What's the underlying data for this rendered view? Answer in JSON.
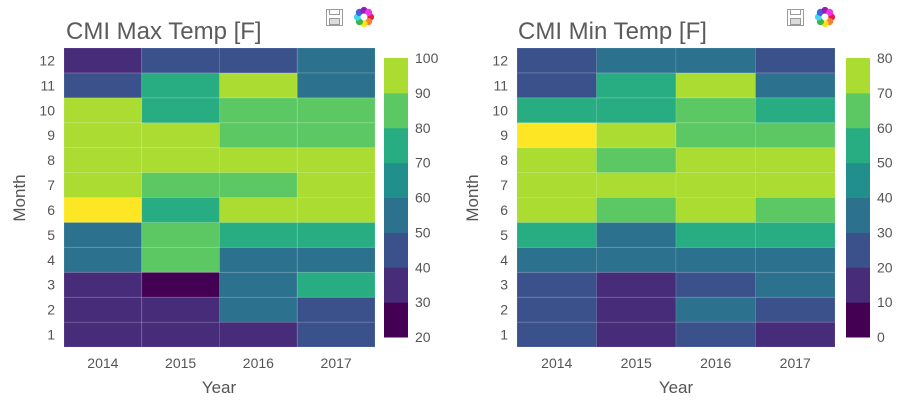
{
  "palette": [
    "#440154",
    "#472c7a",
    "#3b518b",
    "#2c718e",
    "#21908d",
    "#27ad81",
    "#5cc863",
    "#aadc32",
    "#fde725"
  ],
  "chart_data": [
    {
      "type": "heatmap",
      "title": "CMI Max Temp [F]",
      "xlabel": "Year",
      "ylabel": "Month",
      "categories": [
        "2014",
        "2015",
        "2016",
        "2017"
      ],
      "rows": [
        "1",
        "2",
        "3",
        "4",
        "5",
        "6",
        "7",
        "8",
        "9",
        "10",
        "11",
        "12"
      ],
      "color_range": [
        20,
        100
      ],
      "colorbar_ticks": [
        20,
        30,
        40,
        50,
        60,
        70,
        80,
        90,
        100
      ],
      "values": [
        [
          35,
          35,
          32,
          45
        ],
        [
          35,
          35,
          52,
          45
        ],
        [
          32,
          20,
          52,
          65
        ],
        [
          52,
          75,
          52,
          52
        ],
        [
          52,
          75,
          65,
          65
        ],
        [
          100,
          65,
          85,
          85
        ],
        [
          85,
          75,
          75,
          85
        ],
        [
          85,
          85,
          85,
          85
        ],
        [
          85,
          85,
          75,
          75
        ],
        [
          85,
          65,
          75,
          75
        ],
        [
          45,
          65,
          85,
          52
        ],
        [
          32,
          45,
          45,
          55
        ]
      ]
    },
    {
      "type": "heatmap",
      "title": "CMI Min Temp [F]",
      "xlabel": "Year",
      "ylabel": "Month",
      "categories": [
        "2014",
        "2015",
        "2016",
        "2017"
      ],
      "rows": [
        "1",
        "2",
        "3",
        "4",
        "5",
        "6",
        "7",
        "8",
        "9",
        "10",
        "11",
        "12"
      ],
      "color_range": [
        0,
        80
      ],
      "colorbar_ticks": [
        0,
        10,
        20,
        30,
        40,
        50,
        60,
        70,
        80
      ],
      "values": [
        [
          25,
          15,
          25,
          15
        ],
        [
          25,
          15,
          35,
          25
        ],
        [
          25,
          15,
          25,
          35
        ],
        [
          35,
          35,
          35,
          35
        ],
        [
          45,
          35,
          45,
          45
        ],
        [
          65,
          55,
          65,
          55
        ],
        [
          65,
          65,
          65,
          65
        ],
        [
          65,
          55,
          65,
          65
        ],
        [
          80,
          65,
          55,
          55
        ],
        [
          45,
          45,
          55,
          45
        ],
        [
          25,
          45,
          65,
          35
        ],
        [
          25,
          35,
          35,
          25
        ]
      ]
    }
  ]
}
